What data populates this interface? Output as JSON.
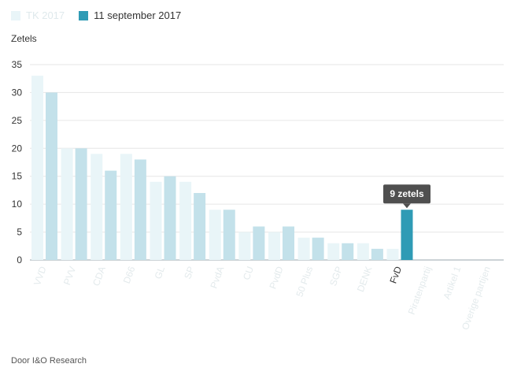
{
  "chart_data": {
    "type": "bar",
    "ylabel": "Zetels",
    "ylim": [
      0,
      35
    ],
    "yticks": [
      0,
      5,
      10,
      15,
      20,
      25,
      30,
      35
    ],
    "grid": true,
    "legend": "top-left",
    "categories": [
      "VVD",
      "PVV",
      "CDA",
      "D66",
      "GL",
      "SP",
      "PvdA",
      "CU",
      "PvdD",
      "50 Plus",
      "SGP",
      "DENK",
      "FvD",
      "Piratenpartij",
      "Artikel 1",
      "Overige partijen"
    ],
    "series": [
      {
        "name": "TK 2017",
        "color": "#e9f5f8",
        "values": [
          33,
          20,
          19,
          19,
          14,
          14,
          9,
          5,
          5,
          4,
          3,
          3,
          2,
          0,
          0,
          0
        ]
      },
      {
        "name": "11 september 2017",
        "color": "#c3e1ea",
        "values": [
          30,
          20,
          16,
          18,
          15,
          12,
          9,
          6,
          6,
          4,
          3,
          2,
          9,
          0,
          0,
          0
        ]
      }
    ],
    "highlight": {
      "category": "FvD",
      "series": 1,
      "color": "#2f9bb5",
      "tooltip": "9 zetels"
    }
  },
  "legend_colors": {
    "tk2017": "#e9f5f8",
    "sept": "#2f9bb5"
  },
  "footer": "Door I&O Research"
}
